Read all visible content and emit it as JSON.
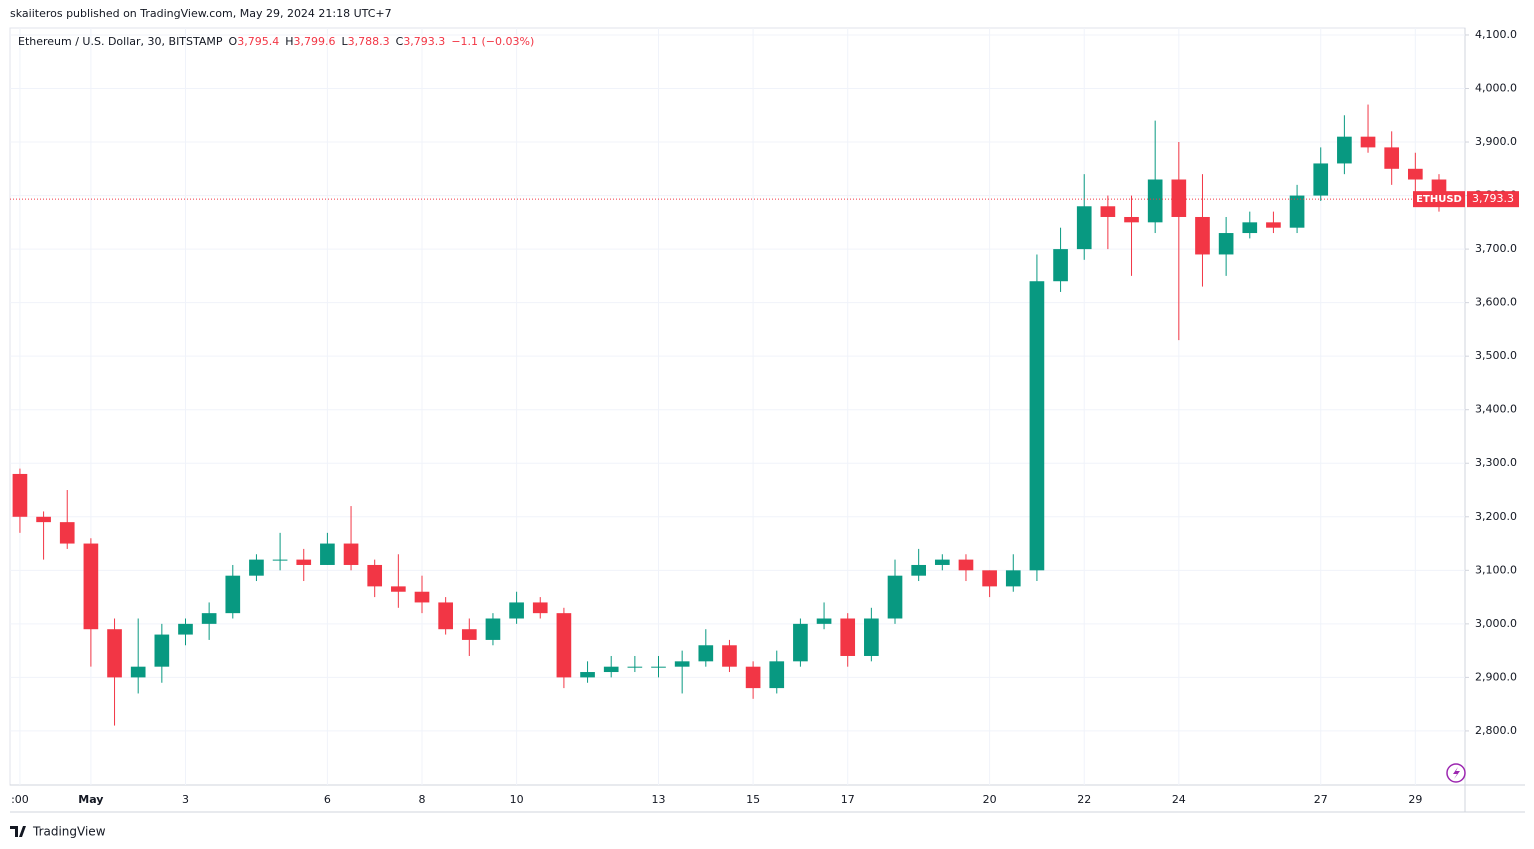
{
  "page": {
    "published": "skaiiteros published on TradingView.com, May 29, 2024 21:18 UTC+7",
    "footer": "TradingView"
  },
  "legend": {
    "symbol": "Ethereum / U.S. Dollar, 30, BITSTAMP",
    "o_label": "O",
    "o_value": "3,795.4",
    "h_label": "H",
    "h_value": "3,799.6",
    "l_label": "L",
    "l_value": "3,788.3",
    "c_label": "C",
    "c_value": "3,793.3",
    "change": "−1.1 (−0.03%)"
  },
  "chart_data": {
    "type": "candlestick",
    "x": [
      -0.5,
      0,
      0.5,
      1,
      1.5,
      2,
      2.5,
      3,
      3.5,
      4,
      4.5,
      5,
      5.5,
      6,
      6.5,
      7,
      7.5,
      8,
      8.5,
      9,
      9.5,
      10,
      10.5,
      11,
      11.5,
      12,
      12.5,
      13,
      13.5,
      14,
      14.5,
      15,
      15.5,
      16,
      16.5,
      17,
      17.5,
      18,
      18.5,
      19,
      19.5,
      20,
      20.5,
      21,
      21.5,
      22,
      22.5,
      23,
      23.5,
      24,
      24.5,
      25,
      25.5,
      26,
      26.5,
      27,
      27.5,
      28,
      28.5,
      29,
      29.5
    ],
    "open": [
      3280,
      3200,
      3190,
      3150,
      2990,
      2900,
      2920,
      2980,
      3000,
      3020,
      3090,
      3120,
      3120,
      3110,
      3150,
      3110,
      3070,
      3060,
      3040,
      2990,
      2970,
      3010,
      3040,
      3020,
      2900,
      2910,
      2920,
      2920,
      2920,
      2930,
      2960,
      2920,
      2880,
      2930,
      3000,
      3010,
      2940,
      3010,
      3090,
      3110,
      3120,
      3100,
      3070,
      3100,
      3640,
      3700,
      3780,
      3760,
      3750,
      3830,
      3760,
      3690,
      3730,
      3750,
      3740,
      3800,
      3860,
      3910,
      3890,
      3850,
      3830
    ],
    "high": [
      3290,
      3210,
      3250,
      3160,
      3010,
      3010,
      3000,
      3010,
      3040,
      3110,
      3130,
      3170,
      3140,
      3170,
      3220,
      3120,
      3130,
      3090,
      3050,
      3010,
      3020,
      3060,
      3050,
      3030,
      2930,
      2940,
      2940,
      2940,
      2950,
      2990,
      2970,
      2930,
      2950,
      3010,
      3040,
      3020,
      3030,
      3120,
      3140,
      3130,
      3130,
      3100,
      3130,
      3690,
      3740,
      3840,
      3800,
      3800,
      3940,
      3900,
      3840,
      3760,
      3770,
      3770,
      3820,
      3890,
      3950,
      3970,
      3920,
      3880,
      3840
    ],
    "low": [
      3170,
      3120,
      3140,
      2920,
      2810,
      2870,
      2890,
      2960,
      2970,
      3010,
      3080,
      3100,
      3080,
      3110,
      3100,
      3050,
      3030,
      3020,
      2980,
      2940,
      2960,
      3000,
      3010,
      2880,
      2890,
      2900,
      2910,
      2900,
      2870,
      2920,
      2910,
      2860,
      2870,
      2920,
      2990,
      2920,
      2930,
      3000,
      3080,
      3100,
      3080,
      3050,
      3060,
      3080,
      3620,
      3680,
      3700,
      3650,
      3730,
      3530,
      3630,
      3650,
      3720,
      3730,
      3730,
      3790,
      3840,
      3880,
      3820,
      3780,
      3770
    ],
    "close": [
      3200,
      3190,
      3150,
      2990,
      2900,
      2920,
      2980,
      3000,
      3020,
      3090,
      3120,
      3120,
      3110,
      3150,
      3110,
      3070,
      3060,
      3040,
      2990,
      2970,
      3010,
      3040,
      3020,
      2900,
      2910,
      2920,
      2920,
      2920,
      2930,
      2960,
      2920,
      2880,
      2930,
      3000,
      3010,
      2940,
      3010,
      3090,
      3110,
      3120,
      3100,
      3070,
      3100,
      3640,
      3700,
      3780,
      3760,
      3750,
      3830,
      3760,
      3690,
      3730,
      3750,
      3740,
      3800,
      3860,
      3910,
      3890,
      3850,
      3830,
      3793.3
    ],
    "up_color": "#089981",
    "down_color": "#f23645",
    "xlim": [
      -0.71,
      30.05
    ],
    "xticks": [
      {
        "value": -0.5,
        "label": ":00"
      },
      {
        "value": 1,
        "label": "May"
      },
      3,
      6,
      8,
      10,
      13,
      15,
      17,
      20,
      22,
      24,
      27,
      29
    ],
    "ylim": [
      2699,
      4113
    ],
    "yticks": [
      {
        "value": 2800,
        "label": "2,800.0"
      },
      {
        "value": 2900,
        "label": "2,900.0"
      },
      {
        "value": 3000,
        "label": "3,000.0"
      },
      {
        "value": 3100,
        "label": "3,100.0"
      },
      {
        "value": 3200,
        "label": "3,200.0"
      },
      {
        "value": 3300,
        "label": "3,300.0"
      },
      {
        "value": 3400,
        "label": "3,400.0"
      },
      {
        "value": 3500,
        "label": "3,500.0"
      },
      {
        "value": 3600,
        "label": "3,600.0"
      },
      {
        "value": 3700,
        "label": "3,700.0"
      },
      {
        "value": 3800,
        "label": "3,800.0"
      },
      {
        "value": 3900,
        "label": "3,900.0"
      },
      {
        "value": 4000,
        "label": "4,000.0"
      },
      {
        "value": 4100,
        "label": "4,100.0"
      }
    ],
    "grid": true,
    "price_line": {
      "name": "ETHUSD",
      "value": 3793.3,
      "label": "3,793.3",
      "color": "#f23645"
    }
  }
}
